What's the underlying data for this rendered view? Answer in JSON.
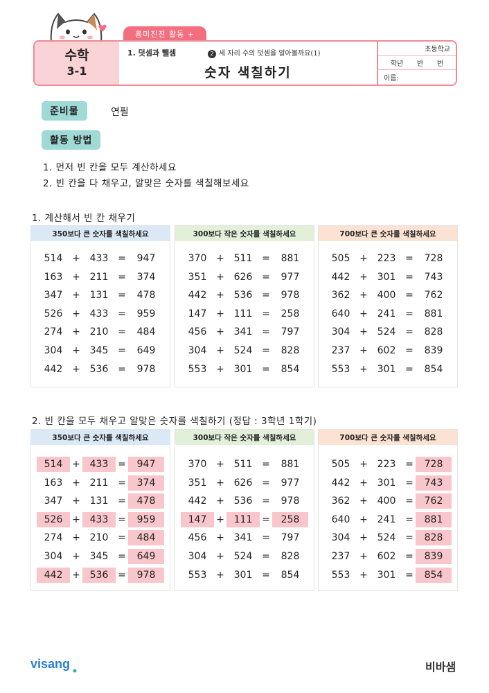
{
  "header": {
    "badge": "흥미진진 활동 +",
    "subject": "수학",
    "grade": "3-1",
    "unit": "1. 덧셈과 뺄셈",
    "lesson_num": "2",
    "lesson": "세 자리 수의 덧셈을 알아볼까요(1)",
    "title": "숫자 색칠하기",
    "school": "초등학교",
    "class_labels": [
      "학년",
      "반",
      "번"
    ],
    "name_label": "이름:"
  },
  "info": {
    "prep_label": "준비물",
    "prep_value": "연필",
    "method_label": "활동 방법",
    "steps": [
      "1. 먼저 빈 칸을 모두 계산하세요",
      "2. 빈 칸을 다 채우고, 알맞은 숫자를 색칠해보세요"
    ]
  },
  "section1_title": "1. 계산해서 빈 칸 채우기",
  "section2_title": "2. 빈 칸을 모두 채우고 알맞은 숫자를 색칠하기 (정답 : 3학년 1학기)",
  "operator": "+",
  "equals": "=",
  "panels": [
    {
      "title": "350보다 큰 숫자를 색칠하세요",
      "rows": [
        {
          "a": "514",
          "b": "433",
          "c": "947",
          "hl": true,
          "hl_all": true
        },
        {
          "a": "163",
          "b": "211",
          "c": "374",
          "hl": true,
          "hl_all": false
        },
        {
          "a": "347",
          "b": "131",
          "c": "478",
          "hl": true,
          "hl_all": false
        },
        {
          "a": "526",
          "b": "433",
          "c": "959",
          "hl": true,
          "hl_all": true
        },
        {
          "a": "274",
          "b": "210",
          "c": "484",
          "hl": true,
          "hl_all": false
        },
        {
          "a": "304",
          "b": "345",
          "c": "649",
          "hl": true,
          "hl_all": false
        },
        {
          "a": "442",
          "b": "536",
          "c": "978",
          "hl": true,
          "hl_all": true
        }
      ]
    },
    {
      "title": "300보다 작은 숫자를 색칠하세요",
      "rows": [
        {
          "a": "370",
          "b": "511",
          "c": "881",
          "hl": false,
          "hl_all": false
        },
        {
          "a": "351",
          "b": "626",
          "c": "977",
          "hl": false,
          "hl_all": false
        },
        {
          "a": "442",
          "b": "536",
          "c": "978",
          "hl": false,
          "hl_all": false
        },
        {
          "a": "147",
          "b": "111",
          "c": "258",
          "hl": true,
          "hl_all": true
        },
        {
          "a": "456",
          "b": "341",
          "c": "797",
          "hl": false,
          "hl_all": false
        },
        {
          "a": "304",
          "b": "524",
          "c": "828",
          "hl": false,
          "hl_all": false
        },
        {
          "a": "553",
          "b": "301",
          "c": "854",
          "hl": false,
          "hl_all": false
        }
      ]
    },
    {
      "title": "700보다 큰 숫자를 색칠하세요",
      "rows": [
        {
          "a": "505",
          "b": "223",
          "c": "728",
          "hl": true,
          "hl_all": false
        },
        {
          "a": "442",
          "b": "301",
          "c": "743",
          "hl": true,
          "hl_all": false
        },
        {
          "a": "362",
          "b": "400",
          "c": "762",
          "hl": true,
          "hl_all": false
        },
        {
          "a": "640",
          "b": "241",
          "c": "881",
          "hl": true,
          "hl_all": false
        },
        {
          "a": "304",
          "b": "524",
          "c": "828",
          "hl": true,
          "hl_all": false
        },
        {
          "a": "237",
          "b": "602",
          "c": "839",
          "hl": true,
          "hl_all": false
        },
        {
          "a": "553",
          "b": "301",
          "c": "854",
          "hl": true,
          "hl_all": false
        }
      ]
    }
  ],
  "footer": {
    "left_logo": "visang",
    "right_logo": "비바샘"
  }
}
